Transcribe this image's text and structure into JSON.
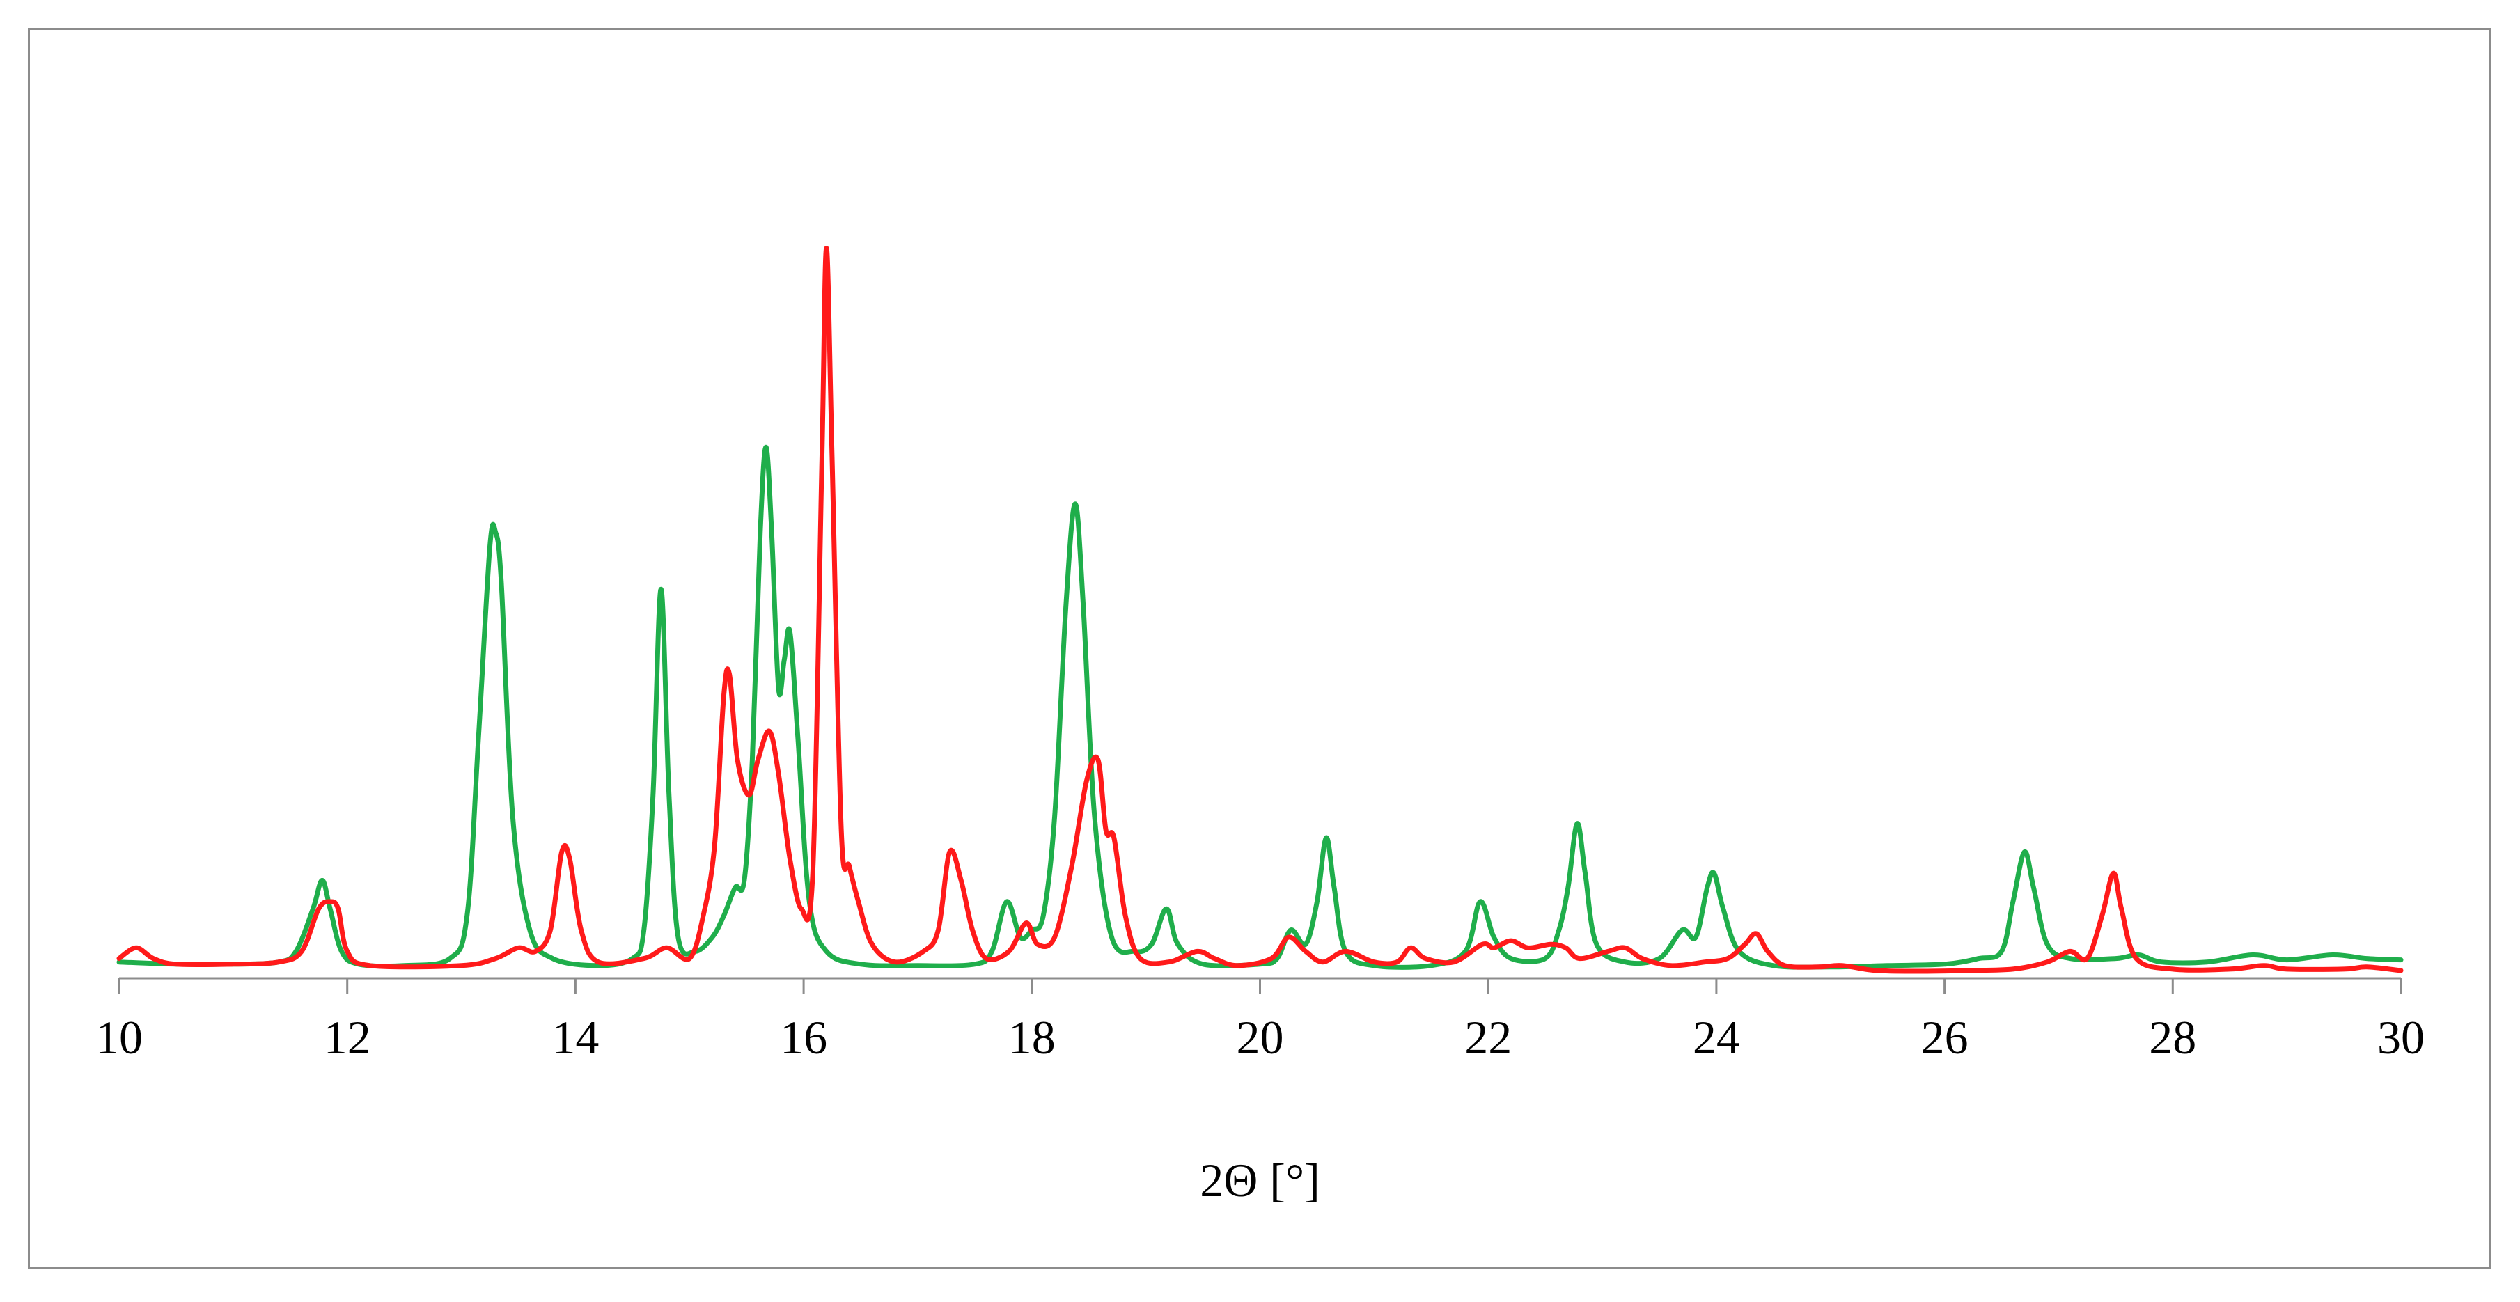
{
  "chart_data": {
    "type": "line",
    "title": "",
    "xlabel": "2Θ [°]",
    "ylabel": "",
    "xlim": [
      10,
      30
    ],
    "ylim": [
      0,
      1.1
    ],
    "x_ticks": [
      "10",
      "12",
      "14",
      "16",
      "18",
      "20",
      "22",
      "24",
      "26",
      "28",
      "30"
    ],
    "y_axis_visible": false,
    "grid": false,
    "legend": "none",
    "series": [
      {
        "color": "#1fae4b",
        "points": [
          [
            10.0,
            0.015
          ],
          [
            10.5,
            0.012
          ],
          [
            11.0,
            0.012
          ],
          [
            11.4,
            0.015
          ],
          [
            11.55,
            0.03
          ],
          [
            11.7,
            0.09
          ],
          [
            11.78,
            0.13
          ],
          [
            11.85,
            0.09
          ],
          [
            11.95,
            0.03
          ],
          [
            12.1,
            0.012
          ],
          [
            12.5,
            0.01
          ],
          [
            12.9,
            0.02
          ],
          [
            13.05,
            0.08
          ],
          [
            13.15,
            0.33
          ],
          [
            13.25,
            0.6
          ],
          [
            13.3,
            0.62
          ],
          [
            13.35,
            0.55
          ],
          [
            13.45,
            0.22
          ],
          [
            13.6,
            0.06
          ],
          [
            13.8,
            0.02
          ],
          [
            14.2,
            0.01
          ],
          [
            14.5,
            0.02
          ],
          [
            14.6,
            0.06
          ],
          [
            14.68,
            0.25
          ],
          [
            14.75,
            0.54
          ],
          [
            14.82,
            0.25
          ],
          [
            14.9,
            0.05
          ],
          [
            15.05,
            0.03
          ],
          [
            15.2,
            0.05
          ],
          [
            15.3,
            0.08
          ],
          [
            15.4,
            0.12
          ],
          [
            15.48,
            0.13
          ],
          [
            15.55,
            0.3
          ],
          [
            15.62,
            0.62
          ],
          [
            15.67,
            0.74
          ],
          [
            15.72,
            0.62
          ],
          [
            15.78,
            0.4
          ],
          [
            15.83,
            0.44
          ],
          [
            15.88,
            0.48
          ],
          [
            15.95,
            0.33
          ],
          [
            16.05,
            0.1
          ],
          [
            16.2,
            0.03
          ],
          [
            16.5,
            0.012
          ],
          [
            17.0,
            0.01
          ],
          [
            17.5,
            0.012
          ],
          [
            17.65,
            0.03
          ],
          [
            17.78,
            0.1
          ],
          [
            17.9,
            0.05
          ],
          [
            18.0,
            0.06
          ],
          [
            18.1,
            0.08
          ],
          [
            18.2,
            0.22
          ],
          [
            18.3,
            0.52
          ],
          [
            18.38,
            0.66
          ],
          [
            18.45,
            0.52
          ],
          [
            18.55,
            0.22
          ],
          [
            18.7,
            0.05
          ],
          [
            18.9,
            0.03
          ],
          [
            19.05,
            0.04
          ],
          [
            19.18,
            0.09
          ],
          [
            19.28,
            0.04
          ],
          [
            19.5,
            0.012
          ],
          [
            20.0,
            0.012
          ],
          [
            20.15,
            0.02
          ],
          [
            20.27,
            0.06
          ],
          [
            20.4,
            0.04
          ],
          [
            20.5,
            0.1
          ],
          [
            20.58,
            0.19
          ],
          [
            20.65,
            0.12
          ],
          [
            20.75,
            0.03
          ],
          [
            21.0,
            0.01
          ],
          [
            21.5,
            0.01
          ],
          [
            21.8,
            0.03
          ],
          [
            21.93,
            0.1
          ],
          [
            22.05,
            0.05
          ],
          [
            22.2,
            0.02
          ],
          [
            22.5,
            0.02
          ],
          [
            22.62,
            0.06
          ],
          [
            22.7,
            0.12
          ],
          [
            22.78,
            0.21
          ],
          [
            22.85,
            0.14
          ],
          [
            22.95,
            0.04
          ],
          [
            23.2,
            0.015
          ],
          [
            23.5,
            0.02
          ],
          [
            23.7,
            0.06
          ],
          [
            23.82,
            0.05
          ],
          [
            23.92,
            0.12
          ],
          [
            23.98,
            0.14
          ],
          [
            24.06,
            0.09
          ],
          [
            24.2,
            0.03
          ],
          [
            24.5,
            0.01
          ],
          [
            25.0,
            0.008
          ],
          [
            25.5,
            0.01
          ],
          [
            26.0,
            0.012
          ],
          [
            26.3,
            0.02
          ],
          [
            26.5,
            0.03
          ],
          [
            26.6,
            0.1
          ],
          [
            26.7,
            0.17
          ],
          [
            26.78,
            0.12
          ],
          [
            26.9,
            0.04
          ],
          [
            27.1,
            0.02
          ],
          [
            27.5,
            0.02
          ],
          [
            27.7,
            0.025
          ],
          [
            27.9,
            0.015
          ],
          [
            28.3,
            0.015
          ],
          [
            28.7,
            0.025
          ],
          [
            29.0,
            0.018
          ],
          [
            29.4,
            0.025
          ],
          [
            29.7,
            0.02
          ],
          [
            30.0,
            0.018
          ]
        ]
      },
      {
        "color": "#ff1a1a",
        "points": [
          [
            10.0,
            0.02
          ],
          [
            10.15,
            0.035
          ],
          [
            10.3,
            0.02
          ],
          [
            10.5,
            0.012
          ],
          [
            11.0,
            0.012
          ],
          [
            11.4,
            0.015
          ],
          [
            11.6,
            0.03
          ],
          [
            11.75,
            0.09
          ],
          [
            11.85,
            0.1
          ],
          [
            11.92,
            0.09
          ],
          [
            12.0,
            0.03
          ],
          [
            12.2,
            0.01
          ],
          [
            13.0,
            0.01
          ],
          [
            13.3,
            0.02
          ],
          [
            13.5,
            0.035
          ],
          [
            13.65,
            0.03
          ],
          [
            13.78,
            0.06
          ],
          [
            13.88,
            0.17
          ],
          [
            13.95,
            0.16
          ],
          [
            14.05,
            0.06
          ],
          [
            14.2,
            0.015
          ],
          [
            14.6,
            0.02
          ],
          [
            14.8,
            0.035
          ],
          [
            15.0,
            0.02
          ],
          [
            15.12,
            0.08
          ],
          [
            15.22,
            0.18
          ],
          [
            15.3,
            0.39
          ],
          [
            15.35,
            0.42
          ],
          [
            15.42,
            0.3
          ],
          [
            15.52,
            0.25
          ],
          [
            15.6,
            0.3
          ],
          [
            15.7,
            0.34
          ],
          [
            15.78,
            0.28
          ],
          [
            15.88,
            0.16
          ],
          [
            15.98,
            0.09
          ],
          [
            16.08,
            0.14
          ],
          [
            16.16,
            0.72
          ],
          [
            16.2,
            1.02
          ],
          [
            16.25,
            0.72
          ],
          [
            16.33,
            0.2
          ],
          [
            16.4,
            0.15
          ],
          [
            16.48,
            0.1
          ],
          [
            16.6,
            0.04
          ],
          [
            16.8,
            0.015
          ],
          [
            17.05,
            0.03
          ],
          [
            17.18,
            0.06
          ],
          [
            17.28,
            0.17
          ],
          [
            17.38,
            0.13
          ],
          [
            17.48,
            0.06
          ],
          [
            17.6,
            0.02
          ],
          [
            17.8,
            0.03
          ],
          [
            17.95,
            0.07
          ],
          [
            18.05,
            0.04
          ],
          [
            18.2,
            0.05
          ],
          [
            18.35,
            0.15
          ],
          [
            18.48,
            0.27
          ],
          [
            18.58,
            0.3
          ],
          [
            18.65,
            0.2
          ],
          [
            18.72,
            0.19
          ],
          [
            18.82,
            0.08
          ],
          [
            18.95,
            0.02
          ],
          [
            19.2,
            0.015
          ],
          [
            19.45,
            0.03
          ],
          [
            19.6,
            0.02
          ],
          [
            19.8,
            0.01
          ],
          [
            20.1,
            0.02
          ],
          [
            20.25,
            0.05
          ],
          [
            20.4,
            0.03
          ],
          [
            20.55,
            0.015
          ],
          [
            20.75,
            0.03
          ],
          [
            21.0,
            0.015
          ],
          [
            21.2,
            0.015
          ],
          [
            21.32,
            0.035
          ],
          [
            21.45,
            0.02
          ],
          [
            21.7,
            0.015
          ],
          [
            21.95,
            0.04
          ],
          [
            22.05,
            0.035
          ],
          [
            22.2,
            0.045
          ],
          [
            22.35,
            0.035
          ],
          [
            22.55,
            0.04
          ],
          [
            22.68,
            0.035
          ],
          [
            22.8,
            0.02
          ],
          [
            23.05,
            0.03
          ],
          [
            23.2,
            0.035
          ],
          [
            23.35,
            0.02
          ],
          [
            23.6,
            0.01
          ],
          [
            23.9,
            0.015
          ],
          [
            24.1,
            0.02
          ],
          [
            24.25,
            0.04
          ],
          [
            24.35,
            0.055
          ],
          [
            24.45,
            0.03
          ],
          [
            24.6,
            0.01
          ],
          [
            24.9,
            0.008
          ],
          [
            25.1,
            0.01
          ],
          [
            25.4,
            0.003
          ],
          [
            25.8,
            0.002
          ],
          [
            26.2,
            0.003
          ],
          [
            26.6,
            0.005
          ],
          [
            26.9,
            0.015
          ],
          [
            27.1,
            0.03
          ],
          [
            27.25,
            0.02
          ],
          [
            27.38,
            0.08
          ],
          [
            27.48,
            0.14
          ],
          [
            27.55,
            0.09
          ],
          [
            27.68,
            0.02
          ],
          [
            28.0,
            0.005
          ],
          [
            28.5,
            0.005
          ],
          [
            28.8,
            0.01
          ],
          [
            29.0,
            0.005
          ],
          [
            29.5,
            0.005
          ],
          [
            29.7,
            0.008
          ],
          [
            30.0,
            0.003
          ]
        ]
      }
    ]
  }
}
